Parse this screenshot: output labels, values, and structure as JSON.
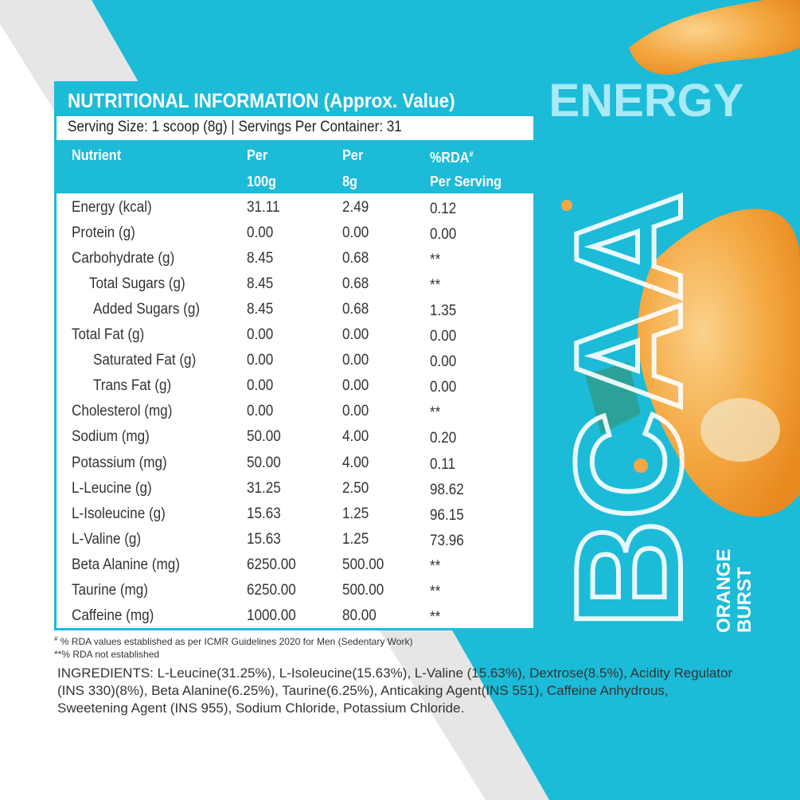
{
  "panel": {
    "title": "NUTRITIONAL INFORMATION (Approx. Value)",
    "serving": "Serving Size: 1 scoop (8g) | Servings Per Container: 31"
  },
  "table": {
    "columns": [
      [
        "Nutrient"
      ],
      [
        "Per",
        "100g"
      ],
      [
        "Per",
        "8g"
      ],
      [
        "%RDA",
        "Per Serving"
      ]
    ],
    "rda_mark": "#",
    "rows": [
      [
        "Energy (kcal)",
        "31.11",
        "2.49",
        "0.12"
      ],
      [
        "Protein (g)",
        "0.00",
        "0.00",
        "0.00"
      ],
      [
        "Carbohydrate (g)",
        "8.45",
        "0.68",
        "**"
      ],
      [
        "Total Sugars (g)",
        "8.45",
        "0.68",
        "**"
      ],
      [
        "Added Sugars (g)",
        "8.45",
        "0.68",
        "1.35"
      ],
      [
        "Total Fat (g)",
        "0.00",
        "0.00",
        "0.00"
      ],
      [
        "Saturated Fat (g)",
        "0.00",
        "0.00",
        "0.00"
      ],
      [
        "Trans Fat (g)",
        "0.00",
        "0.00",
        "0.00"
      ],
      [
        "Cholesterol (mg)",
        "0.00",
        "0.00",
        "**"
      ],
      [
        "Sodium (mg)",
        "50.00",
        "4.00",
        "0.20"
      ],
      [
        "Potassium (mg)",
        "50.00",
        "4.00",
        "0.11"
      ],
      [
        "L-Leucine (g)",
        "31.25",
        "2.50",
        "98.62"
      ],
      [
        "L-Isoleucine (g)",
        "15.63",
        "1.25",
        "96.15"
      ],
      [
        "L-Valine (g)",
        "15.63",
        "1.25",
        "73.96"
      ],
      [
        "Beta Alanine (mg)",
        "6250.00",
        "500.00",
        "**"
      ],
      [
        "Taurine (mg)",
        "6250.00",
        "500.00",
        "**"
      ],
      [
        "Caffeine (mg)",
        "1000.00",
        "80.00",
        "**"
      ]
    ]
  },
  "footnotes": [
    {
      "mark": "#",
      "text": "% RDA values established as per ICMR Guidelines 2020 for Men (Sedentary Work)"
    },
    {
      "text": "**% RDA not established"
    }
  ],
  "ingredients": [
    "INGREDIENTS: L-Leucine(31.25%), L-Isoleucine(15.63%), L-Valine (15.63%), Dextrose(8.5%), Acidity Regulator",
    "(INS 330)(8%), Beta Alanine(6.25%), Taurine(6.25%), Anticaking Agent(INS 551), Caffeine Anhydrous,",
    "Sweetening Agent (INS 955), Sodium Chloride, Potassium Chloride."
  ],
  "brand": {
    "tagline": "ENERGY",
    "product": "BCAA",
    "flavor": [
      "ORANGE",
      "BURST"
    ]
  }
}
